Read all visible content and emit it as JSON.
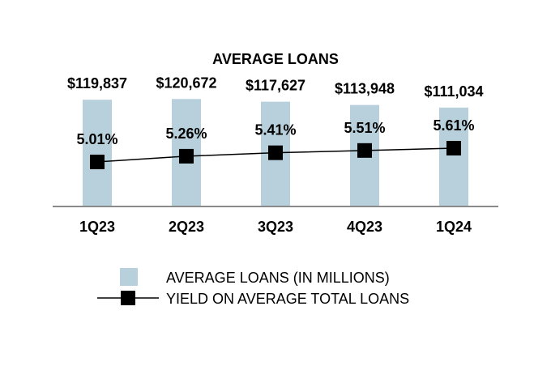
{
  "chart_data": {
    "type": "bar",
    "title": "AVERAGE LOANS",
    "categories": [
      "1Q23",
      "2Q23",
      "3Q23",
      "4Q23",
      "1Q24"
    ],
    "series": [
      {
        "name": "AVERAGE LOANS (IN MILLIONS)",
        "type": "bar",
        "values": [
          119837,
          120672,
          117627,
          113948,
          111034
        ],
        "labels": [
          "$119,837",
          "$120,672",
          "$117,627",
          "$113,948",
          "$111,034"
        ],
        "color": "#b8d0dc"
      },
      {
        "name": "YIELD ON AVERAGE TOTAL LOANS",
        "type": "line",
        "values": [
          5.01,
          5.26,
          5.41,
          5.51,
          5.61
        ],
        "labels": [
          "5.01%",
          "5.26%",
          "5.41%",
          "5.51%",
          "5.61%"
        ],
        "color": "#000000",
        "marker": "square"
      }
    ],
    "legend": "bottom",
    "grid": false
  }
}
